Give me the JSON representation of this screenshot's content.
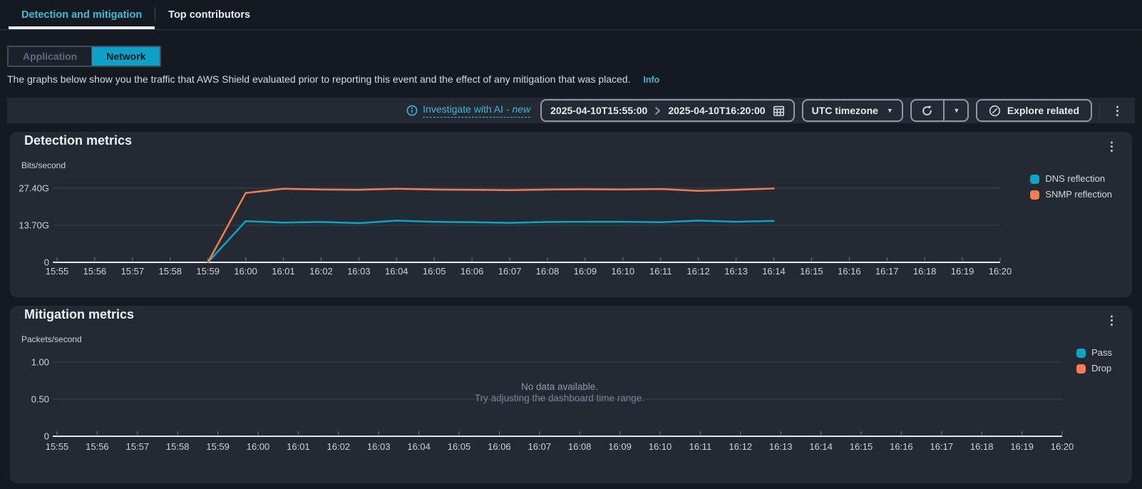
{
  "tabs": {
    "items": [
      {
        "label": "Detection and mitigation",
        "active": true
      },
      {
        "label": "Top contributors",
        "active": false
      }
    ]
  },
  "view_toggle": {
    "options": [
      {
        "label": "Application",
        "selected": false
      },
      {
        "label": "Network",
        "selected": true
      }
    ]
  },
  "description": {
    "text": "The graphs below show you the traffic that AWS Shield evaluated prior to reporting this event and the effect of any mitigation that was placed.",
    "info_label": "Info"
  },
  "toolbar": {
    "investigate_label": "Investigate with AI -",
    "investigate_new": "new",
    "date_start": "2025-04-10T15:55:00",
    "date_end": "2025-04-10T16:20:00",
    "timezone_label": "UTC timezone",
    "explore_label": "Explore related"
  },
  "icons": {
    "caret_down": "▼",
    "kebab": "⋮"
  },
  "colors": {
    "page_background": "#151a21",
    "panel_background": "#232a33",
    "accent_cyan": "#0aa2c7",
    "link_cyan": "#42b4d6",
    "series_cyan": "#0ba4c9",
    "series_orange": "#f87c51",
    "gridline": "#3a414c",
    "axis_line": "#e2e6ea"
  },
  "chart_data": [
    {
      "type": "line",
      "title": "Detection metrics",
      "ylabel": "Bits/second",
      "legend_position": "right-top",
      "grid": "horizontal-only",
      "ymax": 27.4,
      "y_ticks": [
        {
          "label": "27.40G",
          "value": 27.4
        },
        {
          "label": "13.70G",
          "value": 13.7
        },
        {
          "label": "0",
          "value": 0
        }
      ],
      "x_ticks": [
        "15:55",
        "15:56",
        "15:57",
        "15:58",
        "15:59",
        "16:00",
        "16:01",
        "16:02",
        "16:03",
        "16:04",
        "16:05",
        "16:06",
        "16:07",
        "16:08",
        "16:09",
        "16:10",
        "16:11",
        "16:12",
        "16:13",
        "16:14",
        "16:15",
        "16:16",
        "16:17",
        "16:18",
        "16:19",
        "16:20"
      ],
      "sample_times": [
        "15:59",
        "16:00",
        "16:01",
        "16:02",
        "16:03",
        "16:04",
        "16:05",
        "16:06",
        "16:07",
        "16:08",
        "16:09",
        "16:10",
        "16:11",
        "16:12",
        "16:13",
        "16:14"
      ],
      "unit": "Gbps",
      "series": [
        {
          "name": "DNS reflection",
          "color": "#0ba4c9",
          "values": [
            0,
            15.2,
            14.7,
            14.9,
            14.5,
            15.4,
            15.0,
            14.8,
            14.6,
            14.9,
            15.0,
            15.0,
            14.8,
            15.4,
            15.0,
            15.3
          ]
        },
        {
          "name": "SNMP reflection",
          "color": "#f87c51",
          "values": [
            0,
            25.6,
            27.2,
            26.9,
            26.8,
            27.2,
            26.9,
            26.8,
            26.7,
            26.9,
            27.0,
            26.9,
            27.1,
            26.4,
            26.8,
            27.3
          ]
        }
      ]
    },
    {
      "type": "line",
      "title": "Mitigation metrics",
      "ylabel": "Packets/second",
      "legend_position": "right-top",
      "grid": "horizontal-only",
      "ymax": 1.0,
      "y_ticks": [
        {
          "label": "1.00",
          "value": 1.0
        },
        {
          "label": "0.50",
          "value": 0.5
        },
        {
          "label": "0",
          "value": 0
        }
      ],
      "x_ticks": [
        "15:55",
        "15:56",
        "15:57",
        "15:58",
        "15:59",
        "16:00",
        "16:01",
        "16:02",
        "16:03",
        "16:04",
        "16:05",
        "16:06",
        "16:07",
        "16:08",
        "16:09",
        "16:10",
        "16:11",
        "16:12",
        "16:13",
        "16:14",
        "16:15",
        "16:16",
        "16:17",
        "16:18",
        "16:19",
        "16:20"
      ],
      "sample_times": [],
      "unit": "pps",
      "series": [
        {
          "name": "Pass",
          "color": "#0ba4c9",
          "values": []
        },
        {
          "name": "Drop",
          "color": "#f87c51",
          "values": []
        }
      ],
      "no_data": {
        "line1": "No data available.",
        "line2": "Try adjusting the dashboard time range."
      }
    }
  ]
}
